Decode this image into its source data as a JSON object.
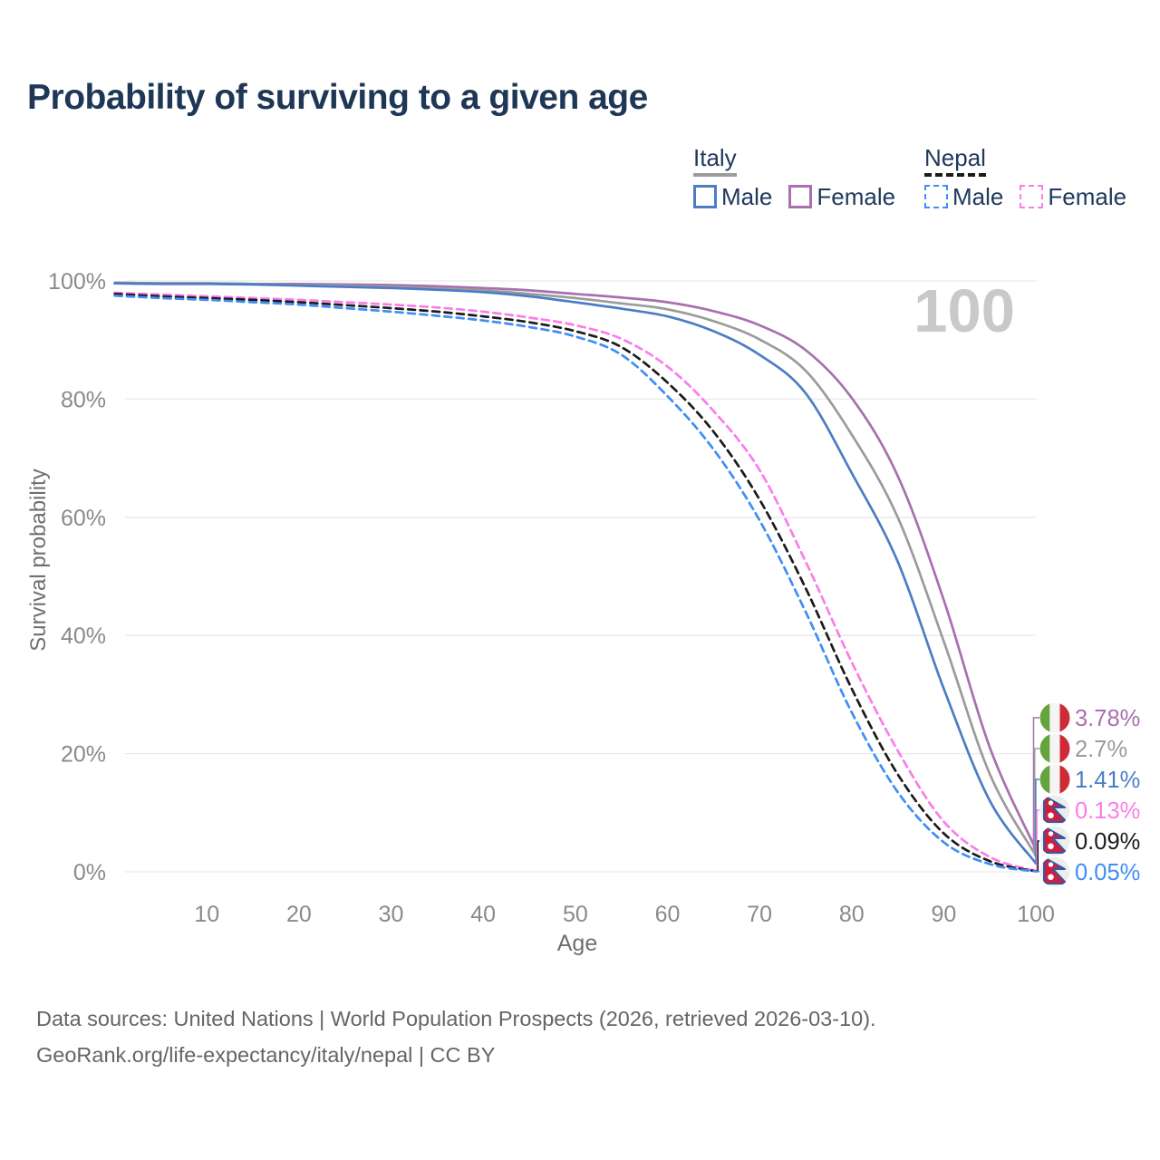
{
  "title": "Probability of surviving to a given age",
  "watermark_age": "100",
  "legend": {
    "groups": [
      {
        "label": "Italy",
        "underline_style": "solid",
        "underline_color": "#9c9c9c",
        "items": [
          {
            "label": "Male",
            "color": "#4c7dc4",
            "dash": false
          },
          {
            "label": "Female",
            "color": "#a96fae",
            "dash": false
          }
        ]
      },
      {
        "label": "Nepal",
        "underline_style": "dashed",
        "underline_color": "#1b1b1b",
        "items": [
          {
            "label": "Male",
            "color": "#3f8ef6",
            "dash": true
          },
          {
            "label": "Female",
            "color": "#fb7de8",
            "dash": true
          }
        ]
      }
    ]
  },
  "chart_data": {
    "type": "line",
    "title": "Probability of surviving to a given age",
    "xlabel": "Age",
    "ylabel": "Survival probability",
    "xlim": [
      0,
      100
    ],
    "ylim": [
      0,
      100
    ],
    "grid": "horizontal-only",
    "legend_position": "top-right",
    "x_ticks": [
      {
        "value": 10,
        "label": "10"
      },
      {
        "value": 20,
        "label": "20"
      },
      {
        "value": 30,
        "label": "30"
      },
      {
        "value": 40,
        "label": "40"
      },
      {
        "value": 50,
        "label": "50"
      },
      {
        "value": 60,
        "label": "60"
      },
      {
        "value": 70,
        "label": "70"
      },
      {
        "value": 80,
        "label": "80"
      },
      {
        "value": 90,
        "label": "90"
      },
      {
        "value": 100,
        "label": "100"
      }
    ],
    "y_ticks": [
      {
        "value": 0,
        "label": "0%"
      },
      {
        "value": 20,
        "label": "20%"
      },
      {
        "value": 40,
        "label": "40%"
      },
      {
        "value": 60,
        "label": "60%"
      },
      {
        "value": 80,
        "label": "80%"
      },
      {
        "value": 100,
        "label": "100%"
      }
    ],
    "x": [
      0,
      5,
      10,
      15,
      20,
      25,
      30,
      35,
      40,
      45,
      50,
      55,
      60,
      65,
      70,
      75,
      80,
      85,
      90,
      95,
      100
    ],
    "series": [
      {
        "name": "Italy Female",
        "country": "Italy",
        "sex": "Female",
        "color": "#a96fae",
        "dash": false,
        "flag_icon": "italy-flag",
        "end_label": "3.78%",
        "values": [
          99.7,
          99.6,
          99.6,
          99.5,
          99.5,
          99.4,
          99.3,
          99.1,
          98.8,
          98.4,
          97.8,
          97.2,
          96.4,
          94.9,
          92.5,
          88.3,
          80.2,
          67.0,
          46.0,
          21.0,
          3.78
        ]
      },
      {
        "name": "Italy",
        "country": "Italy",
        "sex": "Both",
        "color": "#9b9b9b",
        "dash": false,
        "flag_icon": "italy-flag",
        "end_label": "2.7%",
        "values": [
          99.7,
          99.6,
          99.6,
          99.5,
          99.3,
          99.2,
          99.0,
          98.7,
          98.4,
          97.8,
          97.1,
          96.2,
          95.2,
          93.2,
          90.1,
          84.8,
          74.0,
          60.0,
          39.0,
          16.5,
          2.7
        ]
      },
      {
        "name": "Italy Male",
        "country": "Italy",
        "sex": "Male",
        "color": "#4c7dc4",
        "dash": false,
        "flag_icon": "italy-flag",
        "end_label": "1.41%",
        "values": [
          99.6,
          99.5,
          99.5,
          99.4,
          99.2,
          99.0,
          98.8,
          98.5,
          98.1,
          97.4,
          96.4,
          95.3,
          94.0,
          91.5,
          87.5,
          81.0,
          67.5,
          52.5,
          31.0,
          12.0,
          1.41
        ]
      },
      {
        "name": "Nepal Female",
        "country": "Nepal",
        "sex": "Female",
        "color": "#fb7de8",
        "dash": true,
        "flag_icon": "nepal-flag",
        "end_label": "0.13%",
        "values": [
          98.0,
          97.7,
          97.4,
          97.1,
          96.8,
          96.4,
          96.0,
          95.5,
          94.8,
          93.8,
          92.5,
          90.2,
          85.5,
          78.0,
          68.0,
          52.5,
          35.5,
          20.5,
          8.5,
          2.5,
          0.13
        ]
      },
      {
        "name": "Nepal",
        "country": "Nepal",
        "sex": "Both",
        "color": "#1b1b1b",
        "dash": true,
        "flag_icon": "nepal-flag",
        "end_label": "0.09%",
        "values": [
          97.8,
          97.4,
          97.1,
          96.8,
          96.4,
          95.9,
          95.4,
          94.8,
          94.0,
          93.0,
          91.5,
          88.8,
          82.8,
          74.5,
          63.0,
          48.0,
          31.0,
          16.5,
          6.5,
          1.8,
          0.09
        ]
      },
      {
        "name": "Nepal Male",
        "country": "Nepal",
        "sex": "Male",
        "color": "#3f8ef6",
        "dash": true,
        "flag_icon": "nepal-flag",
        "end_label": "0.05%",
        "values": [
          97.5,
          97.1,
          96.8,
          96.4,
          96.0,
          95.4,
          94.8,
          94.1,
          93.3,
          92.2,
          90.6,
          87.5,
          80.5,
          71.5,
          59.5,
          44.0,
          27.0,
          13.5,
          5.0,
          1.3,
          0.05
        ]
      }
    ]
  },
  "footer": {
    "line1": "Data sources: United Nations | World Population Prospects (2026, retrieved 2026-03-10).",
    "line2": "GeoRank.org/life-expectancy/italy/nepal | CC BY"
  }
}
